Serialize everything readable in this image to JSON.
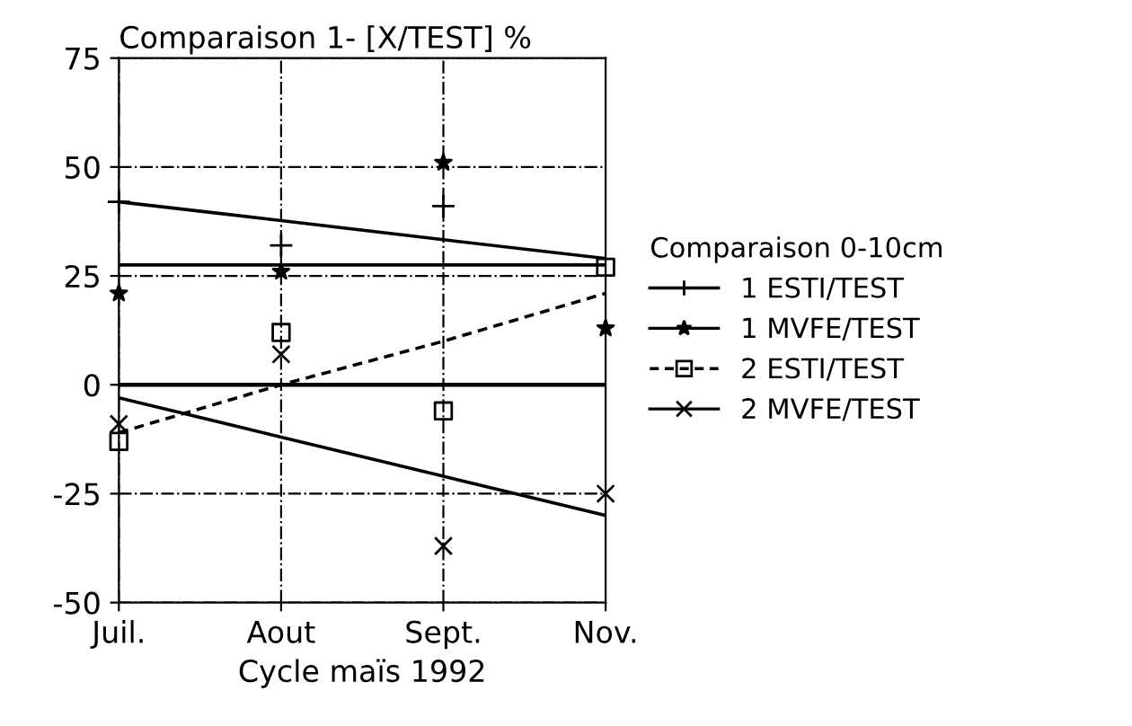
{
  "chart_data": {
    "type": "scatter",
    "title": "Comparaison 1- [X/TEST] %",
    "xlabel": "Cycle maïs 1992",
    "legend_title": "Comparaison 0-10cm",
    "categories": [
      "Juil.",
      "Aout",
      "Sept.",
      "Nov."
    ],
    "series": [
      {
        "name": "1 ESTI/TEST",
        "color": "#000000",
        "marker": "plus",
        "line_style": "solid",
        "values": [
          42,
          32,
          41,
          null
        ]
      },
      {
        "name": "1 MVFE/TEST",
        "color": "#000000",
        "marker": "star",
        "line_style": "solid",
        "values": [
          21,
          26,
          51,
          13
        ]
      },
      {
        "name": "2 ESTI/TEST",
        "color": "#000000",
        "marker": "square",
        "line_style": "dashed",
        "values": [
          -13,
          12,
          -6,
          27
        ]
      },
      {
        "name": "2 MVFE/TEST",
        "color": "#000000",
        "marker": "cross",
        "line_style": "solid",
        "values": [
          -9,
          7,
          -37,
          -25
        ]
      },
      {
        "type": "line",
        "color": "#000000",
        "line_style": "solid",
        "values": [
          42,
          37.7,
          33.3,
          29
        ]
      },
      {
        "type": "line",
        "color": "#000000",
        "line_style": "solid",
        "values": [
          27.5,
          27.5,
          27.5,
          27.5
        ]
      },
      {
        "type": "line",
        "color": "#000000",
        "line_style": "dashed",
        "values": [
          -11,
          0,
          10,
          21
        ]
      },
      {
        "type": "line",
        "color": "#000000",
        "line_style": "solid",
        "values": [
          -3,
          -12,
          -21,
          -30
        ]
      }
    ],
    "ylim": [
      -50,
      75
    ],
    "yticks": [
      -50,
      -25,
      0,
      25,
      50,
      75
    ],
    "ref_lines": [
      {
        "axis": "y",
        "value": 0,
        "color": "#000000",
        "line_style": "solid"
      }
    ],
    "grid": true,
    "legend": "right"
  }
}
